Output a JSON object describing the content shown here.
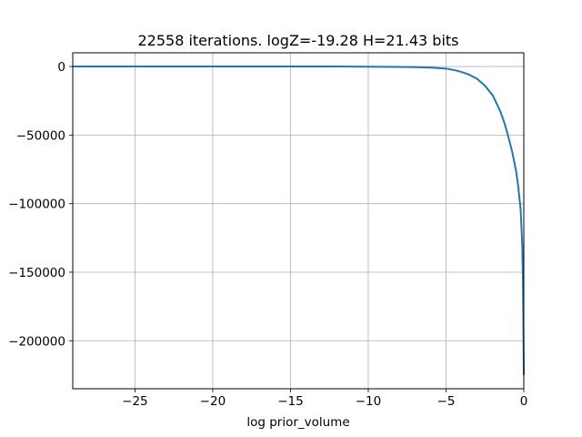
{
  "chart_data": {
    "type": "line",
    "title": "22558 iterations. logZ=-19.28 H=21.43 bits",
    "xlabel": "log prior_volume",
    "ylabel": "",
    "xlim": [
      -29,
      0
    ],
    "ylim": [
      -235000,
      10000
    ],
    "xticks": [
      -25,
      -20,
      -15,
      -10,
      -5,
      0
    ],
    "xtick_labels": [
      "−25",
      "−20",
      "−15",
      "−10",
      "−5",
      "0"
    ],
    "yticks": [
      0,
      -50000,
      -100000,
      -150000,
      -200000
    ],
    "ytick_labels": [
      "0",
      "−50000",
      "−100000",
      "−150000",
      "−200000"
    ],
    "grid": true,
    "series": [
      {
        "name": "",
        "color": "#1f77b4",
        "x": [
          -29,
          -25,
          -20,
          -15,
          -12,
          -10,
          -8,
          -7,
          -6,
          -5,
          -4.5,
          -4,
          -3.5,
          -3,
          -2.5,
          -2,
          -1.75,
          -1.5,
          -1.25,
          -1,
          -0.75,
          -0.5,
          -0.35,
          -0.2,
          -0.1,
          -0.05,
          0
        ],
        "y": [
          0,
          0,
          0,
          0,
          0,
          -100,
          -300,
          -500,
          -800,
          -1500,
          -2500,
          -4000,
          -6000,
          -9000,
          -14000,
          -21000,
          -27000,
          -33000,
          -41000,
          -51000,
          -62000,
          -76000,
          -88000,
          -105000,
          -130000,
          -160000,
          -225000
        ]
      }
    ]
  }
}
